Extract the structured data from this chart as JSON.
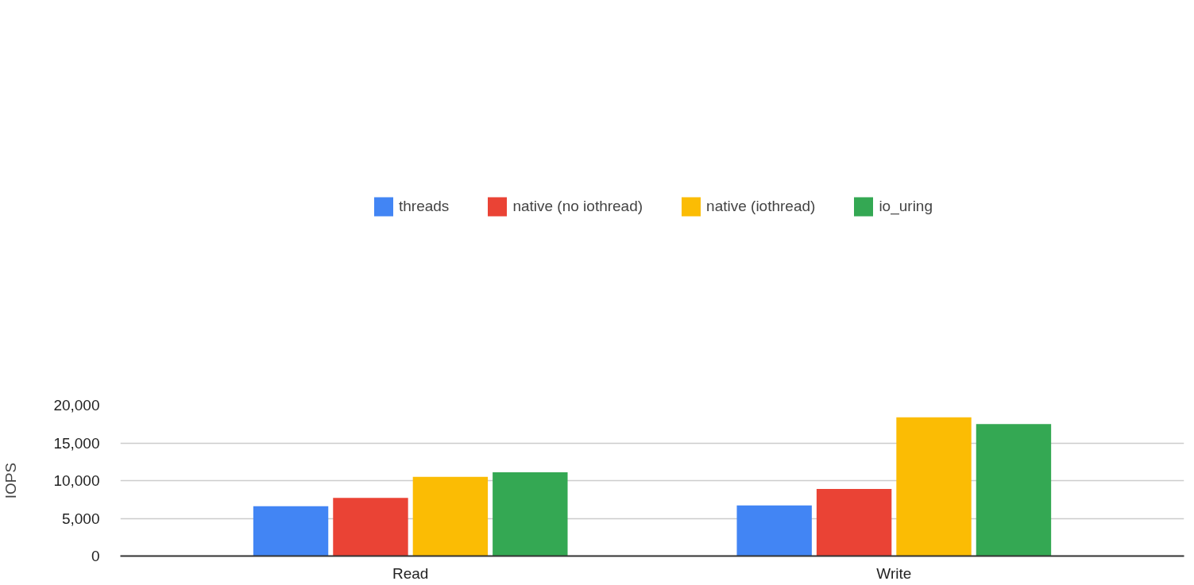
{
  "chart_data": {
    "type": "bar",
    "ylabel": "IOPS",
    "categories": [
      "Read",
      "Write"
    ],
    "series": [
      {
        "name": "threads",
        "color": "#4285f4",
        "values": [
          6600,
          6700
        ]
      },
      {
        "name": "native (no iothread)",
        "color": "#ea4335",
        "values": [
          7700,
          8900
        ]
      },
      {
        "name": "native (iothread)",
        "color": "#fbbc04",
        "values": [
          10500,
          18400
        ]
      },
      {
        "name": "io_uring",
        "color": "#34a853",
        "values": [
          11100,
          17500
        ]
      }
    ],
    "ylim": [
      0,
      20000
    ],
    "yticks": [
      0,
      {
        "value": 5000,
        "label": "5,000"
      },
      {
        "value": 10000,
        "label": "10,000"
      },
      {
        "value": 15000,
        "label": "15,000"
      },
      {
        "value": 20000,
        "label": "20,000"
      }
    ],
    "grid": "y",
    "legend": "top"
  }
}
